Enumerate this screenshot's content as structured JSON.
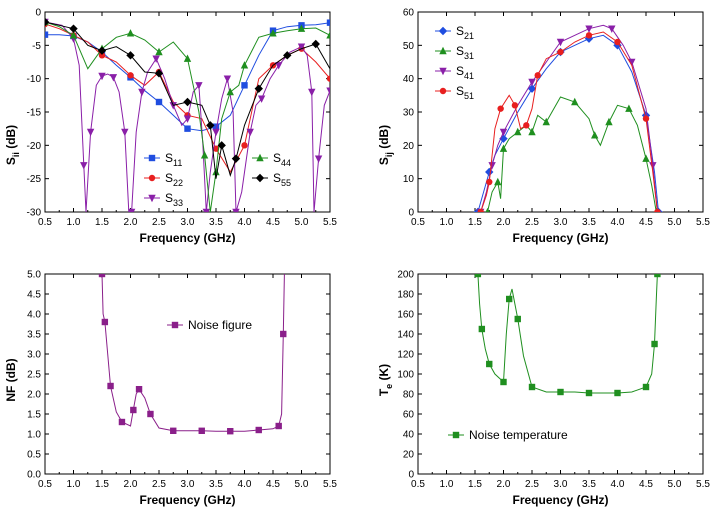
{
  "chart_data": [
    {
      "id": "s-params-a",
      "type": "line",
      "xlabel": "Frequency (GHz)",
      "ylabel_main": "S",
      "ylabel_sub": "ii",
      "ylabel_unit": "(dB)",
      "xlim": [
        0.5,
        5.5
      ],
      "ylim": [
        -30,
        0
      ],
      "xticks": [
        "0.5",
        "1.0",
        "1.5",
        "2.0",
        "2.5",
        "3.0",
        "3.5",
        "4.0",
        "4.5",
        "5.0",
        "5.5"
      ],
      "yticks": [
        "0",
        "-5",
        "-10",
        "-15",
        "-20",
        "-25",
        "-30"
      ],
      "legend_position": "bottom-center",
      "series": [
        {
          "name_main": "S",
          "name_sub": "11",
          "color": "#1f4de0",
          "marker": "square",
          "x": [
            0.5,
            0.75,
            1.0,
            1.25,
            1.5,
            1.75,
            2.0,
            2.25,
            2.5,
            2.75,
            3.0,
            3.25,
            3.5,
            3.75,
            4.0,
            4.25,
            4.5,
            4.75,
            5.0,
            5.25,
            5.5
          ],
          "y": [
            -3.4,
            -3.4,
            -3.6,
            -4.5,
            -6.0,
            -8.0,
            -9.8,
            -11.8,
            -13.5,
            -15.5,
            -17.5,
            -17.8,
            -17.2,
            -15.5,
            -11.0,
            -6.5,
            -2.8,
            -2.2,
            -2.0,
            -1.9,
            -1.6
          ]
        },
        {
          "name_main": "S",
          "name_sub": "22",
          "color": "#e81f1f",
          "marker": "circle",
          "x": [
            0.5,
            0.75,
            1.0,
            1.25,
            1.5,
            1.75,
            2.0,
            2.25,
            2.5,
            2.75,
            3.0,
            3.25,
            3.5,
            3.75,
            4.0,
            4.25,
            4.5,
            4.75,
            5.0,
            5.25,
            5.5
          ],
          "y": [
            -1.8,
            -2.5,
            -3.5,
            -4.5,
            -6.5,
            -7.5,
            -9.5,
            -11.0,
            -9.0,
            -13.5,
            -15.5,
            -16.0,
            -20.5,
            -24.0,
            -20.0,
            -10.0,
            -8.0,
            -6.5,
            -5.5,
            -7.5,
            -10.0
          ]
        },
        {
          "name_main": "S",
          "name_sub": "33",
          "color": "#8a1fa8",
          "marker": "tri-down",
          "x": [
            0.5,
            0.8,
            1.0,
            1.1,
            1.18,
            1.22,
            1.3,
            1.4,
            1.5,
            1.6,
            1.7,
            1.8,
            1.9,
            1.97,
            2.02,
            2.1,
            2.2,
            2.3,
            2.45,
            2.6,
            2.75,
            2.9,
            3.0,
            3.1,
            3.2,
            3.27,
            3.33,
            3.4,
            3.5,
            3.6,
            3.7,
            3.8,
            3.85,
            3.95,
            4.1,
            4.2,
            4.3,
            4.45,
            4.6,
            4.8,
            5.0,
            5.1,
            5.18,
            5.22,
            5.3,
            5.4,
            5.5
          ],
          "y": [
            -1.5,
            -2.0,
            -4.0,
            -8.0,
            -23.0,
            -30.0,
            -18.0,
            -11.0,
            -9.6,
            -9.3,
            -9.8,
            -12.0,
            -18.0,
            -30.0,
            -30.0,
            -18.0,
            -12.0,
            -9.0,
            -7.0,
            -10.0,
            -14.0,
            -17.0,
            -16.0,
            -12.0,
            -11.0,
            -20.0,
            -30.0,
            -24.0,
            -18.0,
            -13.0,
            -10.0,
            -15.0,
            -30.0,
            -27.0,
            -18.0,
            -14.0,
            -13.0,
            -10.0,
            -8.0,
            -6.0,
            -5.2,
            -6.5,
            -12.0,
            -30.0,
            -22.0,
            -14.0,
            -11.8
          ]
        },
        {
          "name_main": "S",
          "name_sub": "44",
          "color": "#1f8f1f",
          "marker": "tri-up",
          "x": [
            0.5,
            0.75,
            1.0,
            1.25,
            1.5,
            1.75,
            2.0,
            2.25,
            2.5,
            2.75,
            3.0,
            3.2,
            3.3,
            3.4,
            3.5,
            3.6,
            3.75,
            3.9,
            4.0,
            4.25,
            4.5,
            4.75,
            5.0,
            5.25,
            5.5
          ],
          "y": [
            -1.5,
            -2.2,
            -3.5,
            -8.5,
            -5.5,
            -3.8,
            -3.2,
            -4.2,
            -6.0,
            -4.5,
            -7.0,
            -15.0,
            -21.5,
            -30.0,
            -24.0,
            -16.0,
            -12.0,
            -11.0,
            -8.0,
            -3.8,
            -3.2,
            -2.8,
            -2.5,
            -2.4,
            -3.5
          ]
        },
        {
          "name_main": "S",
          "name_sub": "55",
          "color": "#000000",
          "marker": "diamond",
          "x": [
            0.5,
            0.75,
            1.0,
            1.25,
            1.5,
            1.75,
            2.0,
            2.25,
            2.5,
            2.75,
            3.0,
            3.25,
            3.4,
            3.5,
            3.6,
            3.75,
            3.85,
            4.0,
            4.25,
            4.5,
            4.75,
            5.0,
            5.25,
            5.5
          ],
          "y": [
            -1.5,
            -2.0,
            -2.5,
            -5.0,
            -5.8,
            -5.2,
            -6.5,
            -9.0,
            -9.2,
            -14.0,
            -13.5,
            -14.0,
            -17.0,
            -25.0,
            -20.0,
            -24.5,
            -22.0,
            -17.0,
            -11.5,
            -8.0,
            -6.5,
            -5.5,
            -4.8,
            -8.5
          ]
        }
      ]
    },
    {
      "id": "s-params-b",
      "type": "line",
      "xlabel": "Frequency (GHz)",
      "ylabel_main": "S",
      "ylabel_sub": "ij",
      "ylabel_unit": "(dB)",
      "xlim": [
        0.5,
        5.5
      ],
      "ylim": [
        0,
        60
      ],
      "xticks": [
        "0.5",
        "1.0",
        "1.5",
        "2.0",
        "2.5",
        "3.0",
        "3.5",
        "4.0",
        "4.5",
        "5.0",
        "5.5"
      ],
      "yticks": [
        "60",
        "50",
        "40",
        "30",
        "20",
        "10",
        "0"
      ],
      "legend_position": "top-left",
      "series": [
        {
          "name_main": "S",
          "name_sub": "21",
          "color": "#1f4de0",
          "marker": "diamond",
          "x": [
            1.55,
            1.65,
            1.75,
            1.85,
            2.0,
            2.25,
            2.5,
            2.75,
            3.0,
            3.25,
            3.5,
            3.75,
            4.0,
            4.25,
            4.5,
            4.65,
            4.72
          ],
          "y": [
            0,
            6,
            12,
            17,
            22,
            30,
            37,
            43,
            48,
            50,
            52,
            53,
            50,
            42,
            29,
            12,
            0
          ]
        },
        {
          "name_main": "S",
          "name_sub": "31",
          "color": "#1f8f1f",
          "marker": "tri-up",
          "x": [
            1.72,
            1.8,
            1.9,
            1.95,
            2.0,
            2.1,
            2.25,
            2.4,
            2.5,
            2.6,
            2.75,
            3.0,
            3.25,
            3.5,
            3.6,
            3.7,
            3.85,
            4.0,
            4.2,
            4.35,
            4.5,
            4.6,
            4.68
          ],
          "y": [
            0,
            6,
            9,
            4,
            19,
            22,
            24,
            26,
            24,
            29,
            27,
            34.5,
            33,
            28,
            23,
            20,
            27,
            32,
            31,
            26,
            16,
            8,
            0
          ]
        },
        {
          "name_main": "S",
          "name_sub": "41",
          "color": "#8a1fa8",
          "marker": "tri-down",
          "x": [
            1.6,
            1.7,
            1.8,
            1.9,
            2.0,
            2.25,
            2.5,
            2.75,
            3.0,
            3.25,
            3.5,
            3.75,
            3.9,
            4.1,
            4.25,
            4.5,
            4.62,
            4.7
          ],
          "y": [
            0,
            6,
            14,
            20,
            24,
            32,
            39,
            45,
            51,
            53,
            55,
            56,
            55,
            50,
            45,
            31,
            14,
            0
          ]
        },
        {
          "name_main": "S",
          "name_sub": "51",
          "color": "#e81f1f",
          "marker": "circle",
          "x": [
            1.6,
            1.7,
            1.75,
            1.85,
            1.95,
            2.1,
            2.2,
            2.3,
            2.4,
            2.5,
            2.6,
            2.75,
            3.0,
            3.25,
            3.5,
            3.75,
            4.0,
            4.25,
            4.5,
            4.62,
            4.7
          ],
          "y": [
            0,
            5,
            9,
            25,
            31,
            35,
            32,
            25,
            26,
            31,
            41,
            46,
            48,
            51,
            53,
            54,
            51,
            44,
            28,
            12,
            0
          ]
        }
      ]
    },
    {
      "id": "noise-figure",
      "type": "line",
      "xlabel": "Frequency (GHz)",
      "ylabel": "NF (dB)",
      "xlim": [
        0.5,
        5.5
      ],
      "ylim": [
        0,
        5
      ],
      "xticks": [
        "0.5",
        "1.0",
        "1.5",
        "2.0",
        "2.5",
        "3.0",
        "3.5",
        "4.0",
        "4.5",
        "5.0",
        "5.5"
      ],
      "yticks": [
        "5.0",
        "4.5",
        "4.0",
        "3.5",
        "3.0",
        "2.5",
        "2.0",
        "1.5",
        "1.0",
        "0.5",
        "0.0"
      ],
      "legend_position": "top-center",
      "series": [
        {
          "name": "Noise figure",
          "color": "#8a1f8a",
          "marker": "square",
          "x": [
            1.5,
            1.52,
            1.55,
            1.6,
            1.65,
            1.75,
            1.85,
            2.0,
            2.05,
            2.1,
            2.15,
            2.25,
            2.35,
            2.5,
            2.75,
            3.0,
            3.25,
            3.5,
            3.75,
            4.0,
            4.25,
            4.5,
            4.6,
            4.65,
            4.68,
            4.7
          ],
          "y": [
            5.0,
            4.0,
            3.8,
            3.0,
            2.2,
            1.55,
            1.3,
            1.2,
            1.6,
            2.0,
            2.12,
            1.9,
            1.5,
            1.15,
            1.08,
            1.08,
            1.08,
            1.07,
            1.07,
            1.07,
            1.1,
            1.13,
            1.2,
            1.5,
            3.5,
            5.0
          ]
        }
      ]
    },
    {
      "id": "noise-temperature",
      "type": "line",
      "xlabel": "Frequency (GHz)",
      "ylabel_main": "T",
      "ylabel_sub": "e",
      "ylabel_unit": "(K)",
      "xlim": [
        0.5,
        5.5
      ],
      "ylim": [
        0,
        200
      ],
      "xticks": [
        "0.5",
        "1.0",
        "1.5",
        "2.0",
        "2.5",
        "3.0",
        "3.5",
        "4.0",
        "4.5",
        "5.0",
        "5.5"
      ],
      "yticks": [
        "200",
        "180",
        "160",
        "140",
        "120",
        "100",
        "80",
        "60",
        "40",
        "20",
        "0"
      ],
      "legend_position": "bottom-left",
      "series": [
        {
          "name": "Noise temperature",
          "color": "#1f8f1f",
          "marker": "square",
          "x": [
            1.55,
            1.58,
            1.62,
            1.68,
            1.75,
            1.85,
            2.0,
            2.05,
            2.1,
            2.15,
            2.25,
            2.35,
            2.5,
            2.75,
            3.0,
            3.25,
            3.5,
            3.75,
            4.0,
            4.25,
            4.5,
            4.6,
            4.65,
            4.68,
            4.7
          ],
          "y": [
            200,
            170,
            145,
            125,
            110,
            100,
            92,
            140,
            175,
            185,
            155,
            118,
            87,
            82,
            82,
            82,
            81,
            81,
            81,
            82,
            87,
            100,
            130,
            175,
            200
          ]
        }
      ]
    }
  ]
}
